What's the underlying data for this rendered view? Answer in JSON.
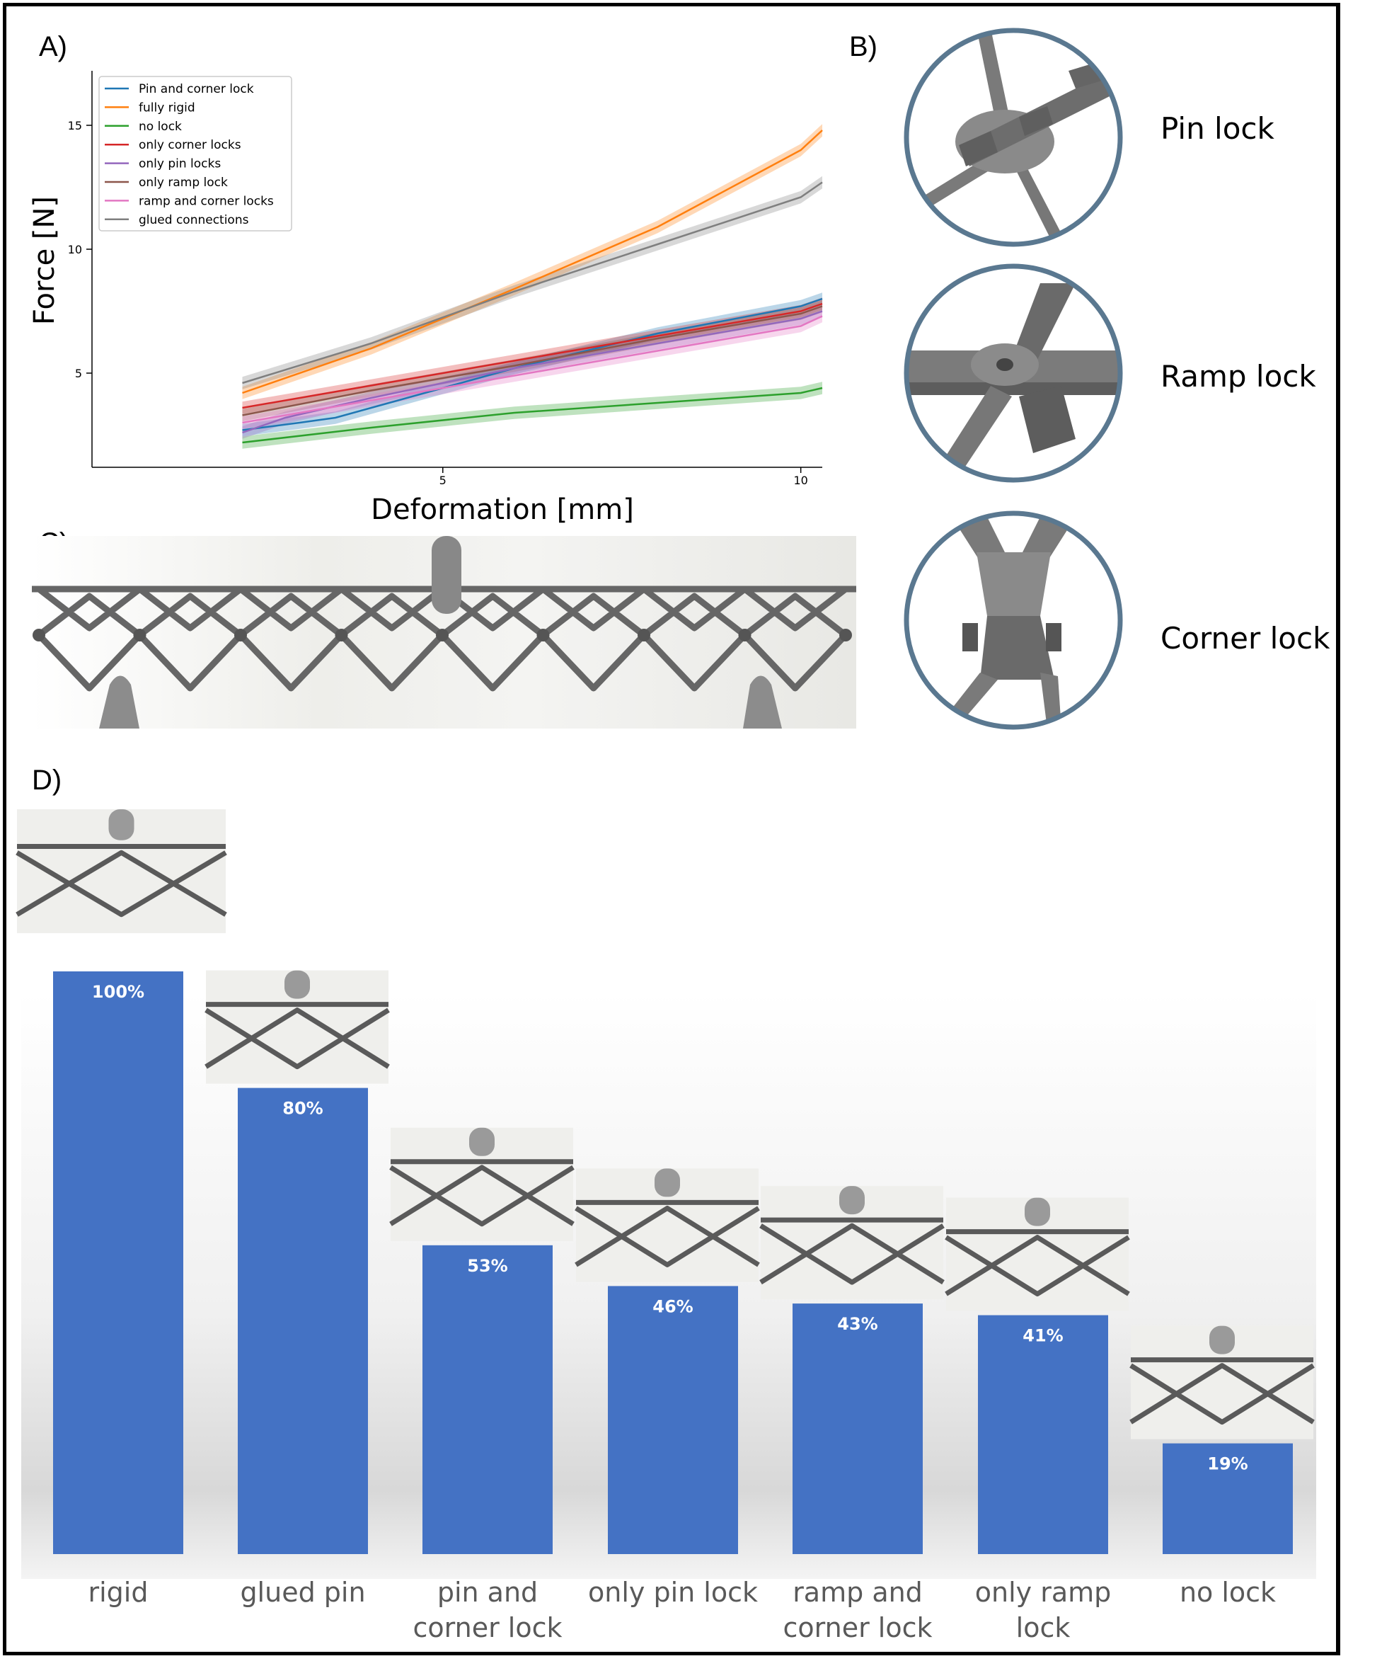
{
  "panels": {
    "a_label": "A)",
    "b_label": "B)",
    "c_label": "C)",
    "d_label": "D)"
  },
  "locks": {
    "pin": "Pin lock",
    "ramp": "Ramp lock",
    "corner": "Corner lock"
  },
  "colors": {
    "bar": "#4472c4",
    "ring": "#5a7890",
    "metal": "#707070"
  },
  "chart_data": [
    {
      "type": "line",
      "xlabel": "Deformation [mm]",
      "ylabel": "Force [N]",
      "xlim": [
        0.1,
        10.3
      ],
      "ylim": [
        1.2,
        17.2
      ],
      "xticks": [
        5,
        10
      ],
      "yticks": [
        5,
        10,
        15
      ],
      "legend_position": "top-left",
      "grid": false,
      "series": [
        {
          "name": "Pin and corner lock",
          "color": "#1f77b4",
          "x": [
            2.2,
            3.0,
            3.5,
            4.0,
            6.0,
            8.0,
            10.0,
            10.3
          ],
          "y": [
            2.7,
            3.0,
            3.2,
            3.6,
            5.2,
            6.6,
            7.7,
            8.0
          ]
        },
        {
          "name": "fully rigid",
          "color": "#ff7f0e",
          "x": [
            2.2,
            4.0,
            6.0,
            8.0,
            10.0,
            10.3
          ],
          "y": [
            4.2,
            6.0,
            8.4,
            10.9,
            14.0,
            14.8
          ]
        },
        {
          "name": "no lock",
          "color": "#2ca02c",
          "x": [
            2.2,
            4.0,
            6.0,
            8.0,
            10.0,
            10.3
          ],
          "y": [
            2.2,
            2.8,
            3.4,
            3.8,
            4.2,
            4.4
          ]
        },
        {
          "name": "only corner locks",
          "color": "#d62728",
          "x": [
            2.2,
            4.0,
            6.0,
            8.0,
            10.0,
            10.3
          ],
          "y": [
            3.6,
            4.5,
            5.5,
            6.5,
            7.5,
            7.8
          ]
        },
        {
          "name": "only pin locks",
          "color": "#9467bd",
          "x": [
            2.2,
            2.8,
            4.0,
            6.0,
            8.0,
            10.0,
            10.3
          ],
          "y": [
            2.6,
            3.2,
            4.0,
            5.2,
            6.2,
            7.2,
            7.5
          ]
        },
        {
          "name": "only ramp lock",
          "color": "#8c564b",
          "x": [
            2.2,
            4.0,
            6.0,
            8.0,
            10.0,
            10.3
          ],
          "y": [
            3.3,
            4.3,
            5.3,
            6.4,
            7.4,
            7.7
          ]
        },
        {
          "name": "ramp and corner locks",
          "color": "#e377c2",
          "x": [
            2.2,
            4.0,
            6.0,
            8.0,
            10.0,
            10.3
          ],
          "y": [
            3.0,
            3.9,
            4.9,
            5.9,
            6.9,
            7.3
          ]
        },
        {
          "name": "glued connections",
          "color": "#7f7f7f",
          "x": [
            2.2,
            4.0,
            6.0,
            8.0,
            10.0,
            10.3
          ],
          "y": [
            4.6,
            6.2,
            8.3,
            10.2,
            12.1,
            12.7
          ]
        }
      ]
    },
    {
      "type": "bar",
      "categories": [
        [
          "rigid"
        ],
        [
          "glued pin"
        ],
        [
          "pin and",
          "corner lock"
        ],
        [
          "only pin lock"
        ],
        [
          "ramp and",
          "corner lock"
        ],
        [
          "only ramp",
          "lock"
        ],
        [
          "no lock"
        ]
      ],
      "values": [
        100,
        80,
        53,
        46,
        43,
        41,
        19
      ],
      "labels": [
        "100%",
        "80%",
        "53%",
        "46%",
        "43%",
        "41%",
        "19%"
      ],
      "ylim": [
        0,
        100
      ]
    }
  ]
}
